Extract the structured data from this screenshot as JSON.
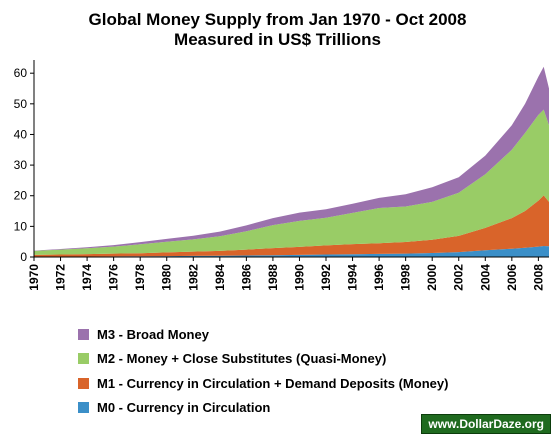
{
  "chart_data": {
    "type": "area",
    "stacked": true,
    "title": "Global Money Supply from Jan 1970 - Oct 2008",
    "subtitle": "Measured in US$ Trillions",
    "ylim": [
      0,
      63
    ],
    "yticks": [
      0,
      10,
      20,
      30,
      40,
      50,
      60
    ],
    "xlim": [
      1970,
      2008.8
    ],
    "xticks": [
      "1970",
      "1972",
      "1974",
      "1976",
      "1978",
      "1980",
      "1982",
      "1984",
      "1986",
      "1988",
      "1990",
      "1992",
      "1994",
      "1996",
      "1998",
      "2000",
      "2002",
      "2004",
      "2006",
      "2008"
    ],
    "x": [
      1970,
      1972,
      1974,
      1976,
      1978,
      1980,
      1982,
      1984,
      1986,
      1988,
      1990,
      1992,
      1994,
      1996,
      1998,
      2000,
      2002,
      2004,
      2006,
      2007,
      2008,
      2008.4,
      2008.8
    ],
    "series": [
      {
        "name": "M0 - Currency in Circulation",
        "color": "#3b8fc8",
        "values": [
          0.1,
          0.1,
          0.15,
          0.2,
          0.25,
          0.3,
          0.35,
          0.4,
          0.5,
          0.6,
          0.7,
          0.8,
          0.9,
          1.0,
          1.1,
          1.3,
          1.6,
          2.2,
          2.7,
          3.0,
          3.4,
          3.6,
          3.5
        ]
      },
      {
        "name": "M1 - Currency in Circulation + Demand Deposits (Money)",
        "color": "#d9642a",
        "values": [
          0.6,
          0.7,
          0.8,
          0.9,
          1.0,
          1.2,
          1.4,
          1.6,
          1.9,
          2.3,
          2.6,
          3.0,
          3.3,
          3.5,
          3.8,
          4.3,
          5.3,
          7.3,
          10.0,
          12.0,
          15.0,
          16.5,
          14.5
        ]
      },
      {
        "name": "M2 - Money + Close Substitutes (Quasi-Money)",
        "color": "#99cc66",
        "values": [
          1.3,
          1.6,
          1.9,
          2.3,
          2.9,
          3.5,
          4.0,
          4.8,
          6.0,
          7.5,
          8.5,
          9.0,
          10.2,
          11.5,
          11.6,
          12.4,
          14.1,
          17.5,
          22.3,
          25.5,
          28.0,
          28.0,
          25.0
        ]
      },
      {
        "name": "M3 - Broad Money",
        "color": "#9b72ad",
        "values": [
          0.1,
          0.2,
          0.3,
          0.5,
          0.7,
          0.9,
          1.2,
          1.5,
          1.9,
          2.3,
          2.7,
          2.8,
          3.0,
          3.3,
          4.0,
          4.8,
          5.0,
          6.1,
          8.0,
          9.5,
          12.5,
          14.0,
          12.0
        ]
      }
    ],
    "legend_order": [
      "M3 - Broad Money",
      "M2 - Money + Close Substitutes (Quasi-Money)",
      "M1 - Currency in Circulation + Demand Deposits (Money)",
      "M0 - Currency in Circulation"
    ],
    "legend_position": "bottom-left",
    "grid": false
  },
  "watermark": "www.DollarDaze.org"
}
